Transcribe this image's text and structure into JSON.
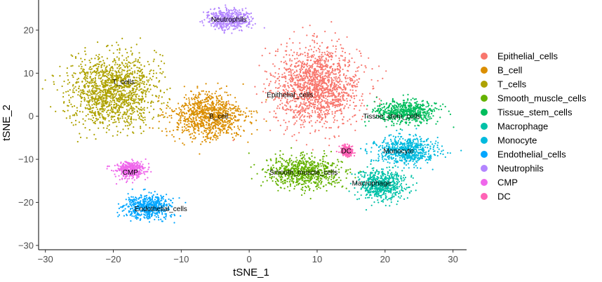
{
  "chart_data": {
    "type": "scatter",
    "xlabel": "tSNE_1",
    "ylabel": "tSNE_2",
    "xlim": [
      -31,
      32
    ],
    "ylim": [
      -31,
      27
    ],
    "x_ticks": [
      -30,
      -20,
      -10,
      0,
      10,
      20,
      30
    ],
    "y_ticks": [
      -30,
      -20,
      -10,
      0,
      10,
      20
    ],
    "x_tick_labels": [
      "−30",
      "−20",
      "−10",
      "0",
      "10",
      "20",
      "30"
    ],
    "y_tick_labels": [
      "−30",
      "−20",
      "−10",
      "0",
      "10",
      "20"
    ],
    "grid": false,
    "legend_position": "right",
    "clusters": [
      {
        "name": "Epithelial_cells",
        "color": "#F8766D",
        "label_x": 6,
        "label_y": 5,
        "center_x": 10,
        "center_y": 7,
        "spread_x": 7,
        "spread_y": 10
      },
      {
        "name": "B_cell",
        "color": "#DB8E00",
        "label_x": -4.5,
        "label_y": 0,
        "center_x": -6,
        "center_y": 0,
        "spread_x": 6,
        "spread_y": 6
      },
      {
        "name": "T_cells",
        "color": "#AEA200",
        "label_x": -18.5,
        "label_y": 8,
        "center_x": -20,
        "center_y": 6,
        "spread_x": 7,
        "spread_y": 9
      },
      {
        "name": "Smooth_muscle_cells",
        "color": "#64B200",
        "label_x": 8,
        "label_y": -13,
        "center_x": 8,
        "center_y": -13,
        "spread_x": 6,
        "spread_y": 4
      },
      {
        "name": "Tissue_stem_cells",
        "color": "#00BD5C",
        "label_x": 21,
        "label_y": 0,
        "center_x": 23,
        "center_y": 1,
        "spread_x": 5,
        "spread_y": 3
      },
      {
        "name": "Macrophage",
        "color": "#00C1A7",
        "label_x": 18,
        "label_y": -15.5,
        "center_x": 19.5,
        "center_y": -16,
        "spread_x": 4,
        "spread_y": 4
      },
      {
        "name": "Monocyte",
        "color": "#00BADE",
        "label_x": 22,
        "label_y": -8,
        "center_x": 23,
        "center_y": -8,
        "spread_x": 5,
        "spread_y": 3.5
      },
      {
        "name": "Endothelial_cells",
        "color": "#00A6FF",
        "label_x": -13,
        "label_y": -21.5,
        "center_x": -15,
        "center_y": -21,
        "spread_x": 4,
        "spread_y": 3
      },
      {
        "name": "Neutrophils",
        "color": "#B385FF",
        "label_x": -3,
        "label_y": 22.5,
        "center_x": -3,
        "center_y": 22.5,
        "spread_x": 3.5,
        "spread_y": 2.5
      },
      {
        "name": "CMP",
        "color": "#EF67EB",
        "label_x": -17.5,
        "label_y": -13,
        "center_x": -17.5,
        "center_y": -12.5,
        "spread_x": 2.5,
        "spread_y": 2.2
      },
      {
        "name": "DC",
        "color": "#FF63B6",
        "label_x": 14.3,
        "label_y": -8,
        "center_x": 14.3,
        "center_y": -8,
        "spread_x": 0.9,
        "spread_y": 1.2
      }
    ]
  }
}
